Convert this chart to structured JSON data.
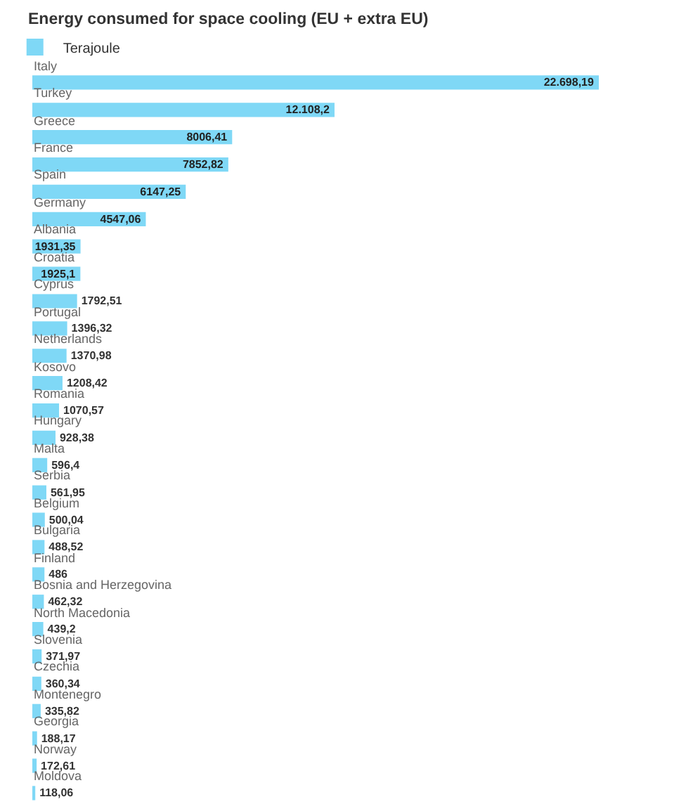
{
  "chart_data": {
    "type": "bar",
    "orientation": "horizontal",
    "title": "Energy consumed for space cooling (EU + extra EU)",
    "categories": [
      "Italy",
      "Turkey",
      "Greece",
      "France",
      "Spain",
      "Germany",
      "Albania",
      "Croatia",
      "Cyprus",
      "Portugal",
      "Netherlands",
      "Kosovo",
      "Romania",
      "Hungary",
      "Malta",
      "Serbia",
      "Belgium",
      "Bulgaria",
      "Finland",
      "Bosnia and Herzegovina",
      "North Macedonia",
      "Slovenia",
      "Czechia",
      "Montenegro",
      "Georgia",
      "Norway",
      "Moldova"
    ],
    "series": [
      {
        "name": "Terajoule",
        "color": "#7fd8f6",
        "values": [
          22698.19,
          12108.2,
          8006.41,
          7852.82,
          6147.25,
          4547.06,
          1931.35,
          1925.1,
          1792.51,
          1396.32,
          1370.98,
          1208.42,
          1070.57,
          928.38,
          596.4,
          561.95,
          500.04,
          488.52,
          486,
          462.32,
          439.2,
          371.97,
          360.34,
          335.82,
          188.17,
          172.61,
          118.06
        ],
        "value_labels": [
          "22.698,19",
          "12.108,2",
          "8006,41",
          "7852,82",
          "6147,25",
          "4547,06",
          "1931,35",
          "1925,1",
          "1792,51",
          "1396,32",
          "1370,98",
          "1208,42",
          "1070,57",
          "928,38",
          "596,4",
          "561,95",
          "500,04",
          "488,52",
          "486",
          "462,32",
          "439,2",
          "371,97",
          "360,34",
          "335,82",
          "188,17",
          "172,61",
          "118,06"
        ]
      }
    ],
    "legend": "top left",
    "tick_labels": "y"
  }
}
